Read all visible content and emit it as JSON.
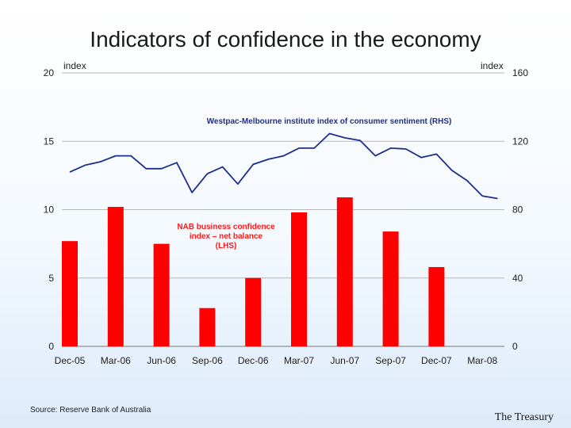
{
  "title": "Indicators of confidence in the economy",
  "source": "Source: Reserve Bank of Australia",
  "brand": "The Treasury",
  "chart_data": {
    "type": "bar+line",
    "title": "Indicators of confidence in the economy",
    "left_axis": {
      "label": "index",
      "range": [
        0,
        20
      ],
      "ticks": [
        "0",
        "5",
        "10",
        "15",
        "20"
      ]
    },
    "right_axis": {
      "label": "index",
      "range": [
        0,
        160
      ],
      "ticks": [
        "0",
        "40",
        "80",
        "120",
        "160"
      ]
    },
    "x_tick_labels": [
      "Dec-05",
      "Mar-06",
      "Jun-06",
      "Sep-06",
      "Dec-06",
      "Mar-07",
      "Jun-07",
      "Sep-07",
      "Dec-07",
      "Mar-08"
    ],
    "gridlines": true,
    "bar_series": {
      "name_lines": [
        "NAB business confidence",
        "index – net balance",
        "(LHS)"
      ],
      "axis": "left",
      "color": "#ff0000",
      "x": [
        "Dec-05",
        "Mar-06",
        "Jun-06",
        "Sep-06",
        "Dec-06",
        "Mar-07",
        "Jun-07",
        "Sep-07",
        "Dec-07"
      ],
      "values": [
        7.7,
        10.2,
        7.5,
        2.8,
        5.0,
        9.8,
        10.9,
        8.4,
        5.8
      ]
    },
    "line_series": {
      "name": "Westpac-Melbourne institute index of consumer sentiment (RHS)",
      "axis": "right",
      "color": "#1f2d8a",
      "values": [
        102,
        106,
        108,
        111.5,
        111.5,
        104,
        104,
        107.5,
        90,
        101,
        105,
        95,
        106.5,
        109.5,
        111.5,
        116,
        116,
        124.5,
        122,
        120.5,
        111.5,
        116,
        115.5,
        110.5,
        112.5,
        103,
        97,
        88,
        86.5
      ]
    }
  }
}
